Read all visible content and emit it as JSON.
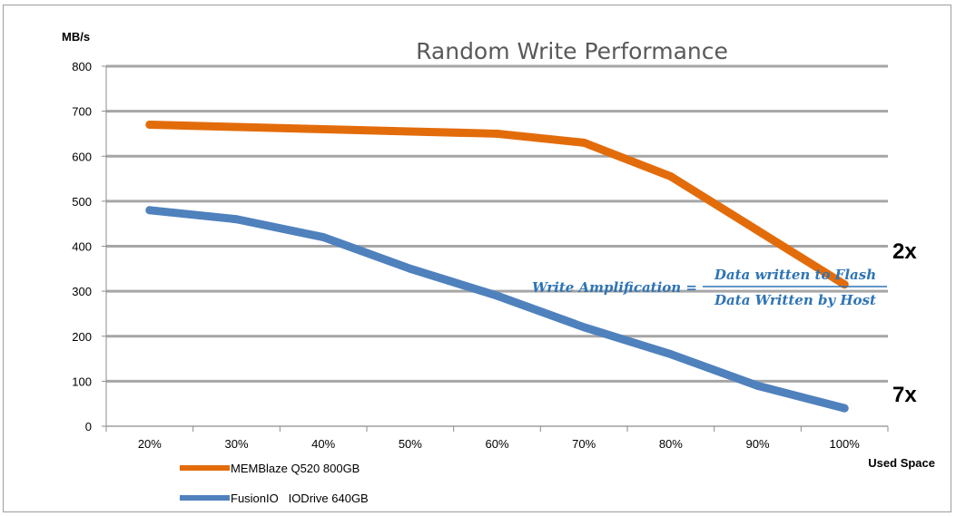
{
  "chart_data": {
    "type": "line",
    "title": "Random Write Performance",
    "ylabel": "MB/s",
    "xlabel": "Used Space",
    "ylim": [
      0,
      800
    ],
    "yticks": [
      0,
      100,
      200,
      300,
      400,
      500,
      600,
      700,
      800
    ],
    "categories": [
      "20%",
      "30%",
      "40%",
      "50%",
      "60%",
      "70%",
      "80%",
      "90%",
      "100%"
    ],
    "grid": true,
    "legend_position": "bottom-left",
    "series": [
      {
        "name": "MEMBlaze Q520 800GB",
        "color": "#e36c0a",
        "values": [
          670,
          665,
          660,
          655,
          650,
          630,
          555,
          435,
          315
        ]
      },
      {
        "name": "FusionIO   IODrive 640GB",
        "color": "#4f81bd",
        "values": [
          480,
          460,
          420,
          350,
          290,
          220,
          160,
          90,
          40
        ]
      }
    ],
    "annotations": {
      "ratio_top": "2x",
      "ratio_bottom": "7x",
      "formula_lhs": "Write Amplification =",
      "formula_numerator": "Data written to Flash",
      "formula_denominator": "Data Written by Host",
      "formula_color": "#2e74b5"
    }
  }
}
